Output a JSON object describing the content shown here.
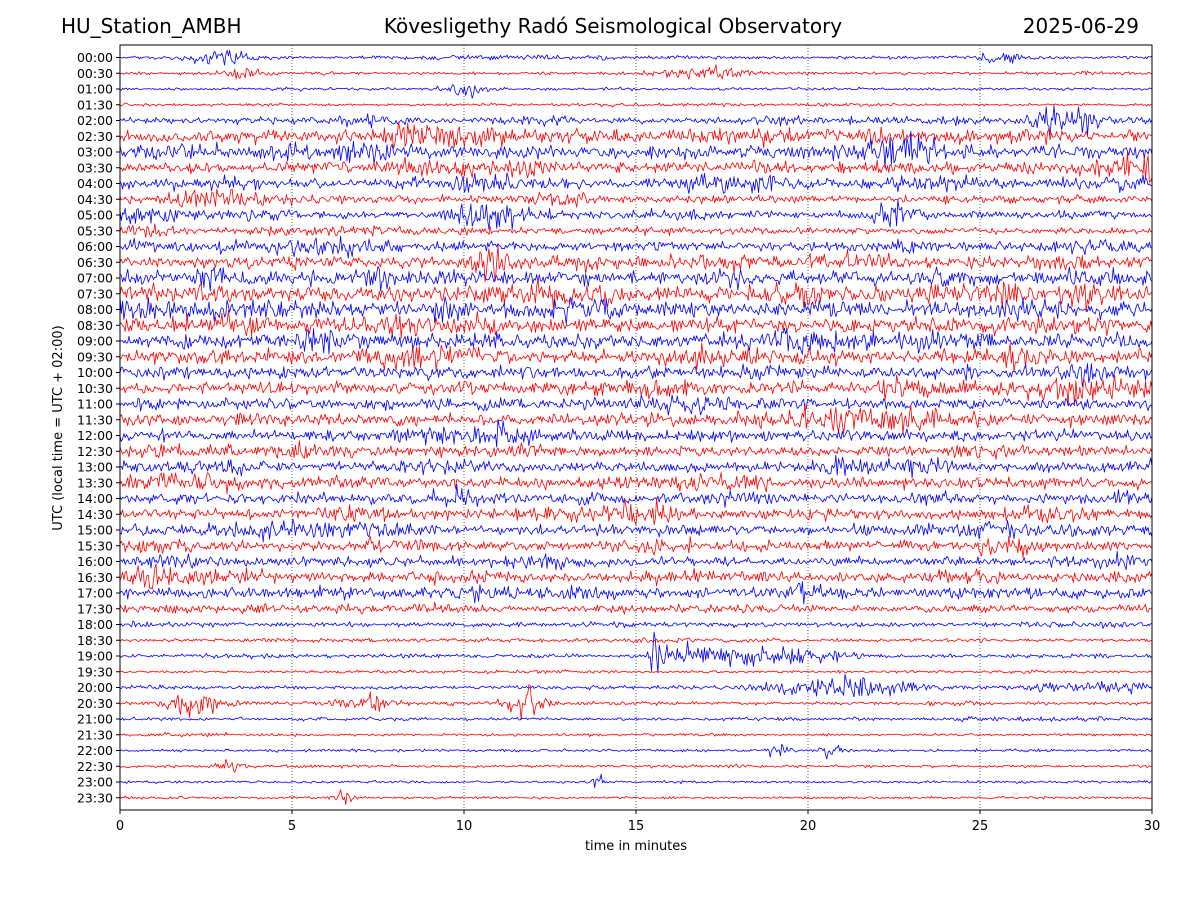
{
  "header": {
    "station": "HU_Station_AMBH",
    "observatory": "Kövesligethy Radó Seismological Observatory",
    "date": "2025-06-29"
  },
  "chart_data": {
    "type": "line",
    "title": "Kövesligethy Radó Seismological Observatory",
    "xlabel": "time in minutes",
    "ylabel": "UTC (local time = UTC + 02:00)",
    "xlim": [
      0,
      30
    ],
    "x_ticks": [
      0,
      5,
      10,
      15,
      20,
      25,
      30
    ],
    "vertical_gridlines_at": [
      5,
      10,
      15,
      20,
      25
    ],
    "row_labels": [
      "00:00",
      "00:30",
      "01:00",
      "01:30",
      "02:00",
      "02:30",
      "03:00",
      "03:30",
      "04:00",
      "04:30",
      "05:00",
      "05:30",
      "06:00",
      "06:30",
      "07:00",
      "07:30",
      "08:00",
      "08:30",
      "09:00",
      "09:30",
      "10:00",
      "10:30",
      "11:00",
      "11:30",
      "12:00",
      "12:30",
      "13:00",
      "13:30",
      "14:00",
      "14:30",
      "15:00",
      "15:30",
      "16:00",
      "16:30",
      "17:00",
      "17:30",
      "18:00",
      "18:30",
      "19:00",
      "19:30",
      "20:00",
      "20:30",
      "21:00",
      "21:30",
      "22:00",
      "22:30",
      "23:00",
      "23:30"
    ],
    "row_colors": [
      "#0000ff",
      "#ff0000"
    ],
    "relative_amplitude_per_row": [
      0.1,
      0.08,
      0.07,
      0.07,
      0.3,
      0.85,
      0.8,
      0.7,
      0.65,
      0.45,
      0.4,
      0.35,
      0.55,
      0.75,
      0.95,
      1.0,
      0.95,
      1.0,
      0.9,
      0.85,
      0.75,
      0.8,
      0.7,
      0.75,
      0.7,
      0.65,
      0.6,
      0.7,
      0.6,
      0.65,
      0.65,
      0.6,
      0.55,
      0.6,
      0.65,
      0.4,
      0.2,
      0.12,
      0.15,
      0.06,
      0.12,
      0.12,
      0.1,
      0.05,
      0.07,
      0.06,
      0.05,
      0.05
    ],
    "events": [
      {
        "row": "00:00",
        "minute": 3.0,
        "width": 0.8,
        "amp": 1.2
      },
      {
        "row": "00:00",
        "minute": 25.5,
        "width": 0.6,
        "amp": 0.8
      },
      {
        "row": "00:30",
        "minute": 3.6,
        "width": 0.6,
        "amp": 0.9
      },
      {
        "row": "00:30",
        "minute": 17.0,
        "width": 1.2,
        "amp": 1.0
      },
      {
        "row": "01:00",
        "minute": 10.0,
        "width": 0.6,
        "amp": 1.0
      },
      {
        "row": "02:00",
        "minute": 27.5,
        "width": 1.0,
        "amp": 2.0
      },
      {
        "row": "02:30",
        "minute": 9.0,
        "width": 1.2,
        "amp": 1.3
      },
      {
        "row": "04:30",
        "minute": 3.0,
        "width": 1.0,
        "amp": 1.4
      },
      {
        "row": "05:00",
        "minute": 11.0,
        "width": 1.2,
        "amp": 1.4
      },
      {
        "row": "05:00",
        "minute": 22.4,
        "width": 0.5,
        "amp": 1.6
      },
      {
        "row": "05:30",
        "minute": 1.0,
        "width": 0.6,
        "amp": 1.2
      },
      {
        "row": "06:30",
        "minute": 10.8,
        "width": 0.6,
        "amp": 2.0
      },
      {
        "row": "16:30",
        "minute": 1.0,
        "width": 0.8,
        "amp": 1.3
      },
      {
        "row": "19:00",
        "minute": 15.6,
        "width": 0.2,
        "amp": 3.0
      },
      {
        "row": "19:00",
        "minute": 17.0,
        "width": 1.2,
        "amp": 1.5
      },
      {
        "row": "19:00",
        "minute": 19.5,
        "width": 1.5,
        "amp": 1.0
      },
      {
        "row": "20:00",
        "minute": 21.0,
        "width": 2.0,
        "amp": 1.3
      },
      {
        "row": "20:00",
        "minute": 28.5,
        "width": 1.5,
        "amp": 1.0
      },
      {
        "row": "20:30",
        "minute": 2.2,
        "width": 0.8,
        "amp": 1.6
      },
      {
        "row": "20:30",
        "minute": 7.0,
        "width": 0.8,
        "amp": 1.4
      },
      {
        "row": "20:30",
        "minute": 11.8,
        "width": 0.5,
        "amp": 2.5
      },
      {
        "row": "22:00",
        "minute": 19.1,
        "width": 0.3,
        "amp": 1.4
      },
      {
        "row": "22:00",
        "minute": 20.7,
        "width": 0.3,
        "amp": 1.0
      },
      {
        "row": "22:30",
        "minute": 3.3,
        "width": 0.4,
        "amp": 1.0
      },
      {
        "row": "23:00",
        "minute": 13.9,
        "width": 0.2,
        "amp": 1.0
      },
      {
        "row": "23:30",
        "minute": 6.5,
        "width": 0.3,
        "amp": 1.0
      }
    ]
  }
}
